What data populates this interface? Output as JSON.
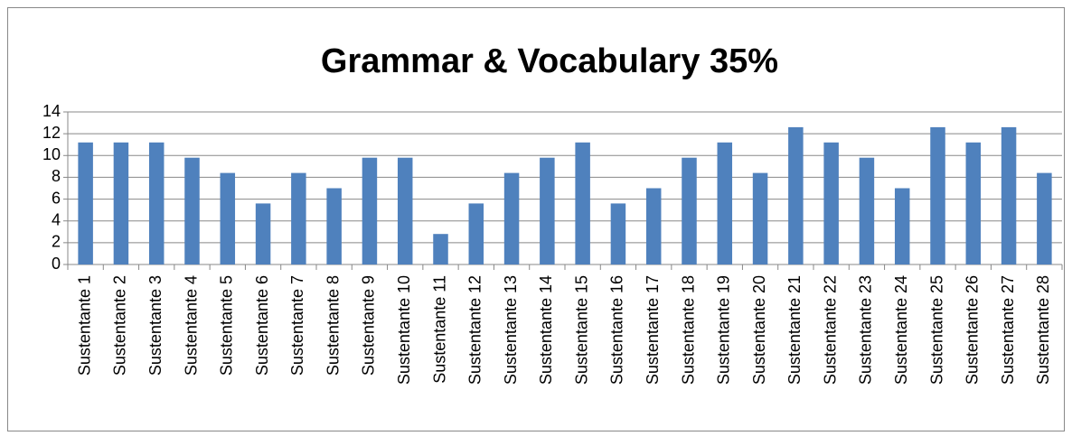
{
  "chart_data": {
    "type": "bar",
    "title": "Grammar & Vocabulary 35%",
    "categories": [
      "Sustentante 1",
      "Sustentante 2",
      "Sustentante 3",
      "Sustentante 4",
      "Sustentante 5",
      "Sustentante 6",
      "Sustentante 7",
      "Sustentante 8",
      "Sustentante 9",
      "Sustentante 10",
      "Sustentante 11",
      "Sustentante 12",
      "Sustentante 13",
      "Sustentante 14",
      "Sustentante 15",
      "Sustentante 16",
      "Sustentante 17",
      "Sustentante 18",
      "Sustentante 19",
      "Sustentante 20",
      "Sustentante 21",
      "Sustentante 22",
      "Sustentante 23",
      "Sustentante 24",
      "Sustentante 25",
      "Sustentante 26",
      "Sustentante 27",
      "Sustentante 28"
    ],
    "values": [
      11.2,
      11.2,
      11.2,
      9.8,
      8.4,
      5.6,
      8.4,
      7,
      9.8,
      9.8,
      2.8,
      5.6,
      8.4,
      9.8,
      11.2,
      5.6,
      7,
      9.8,
      11.2,
      8.4,
      12.6,
      11.2,
      9.8,
      7,
      12.6,
      11.2,
      12.6,
      8.4
    ],
    "color": "#4f81bd",
    "ylim": [
      0,
      14
    ],
    "yticks": [
      0,
      2,
      4,
      6,
      8,
      10,
      12,
      14
    ],
    "grid": true
  }
}
